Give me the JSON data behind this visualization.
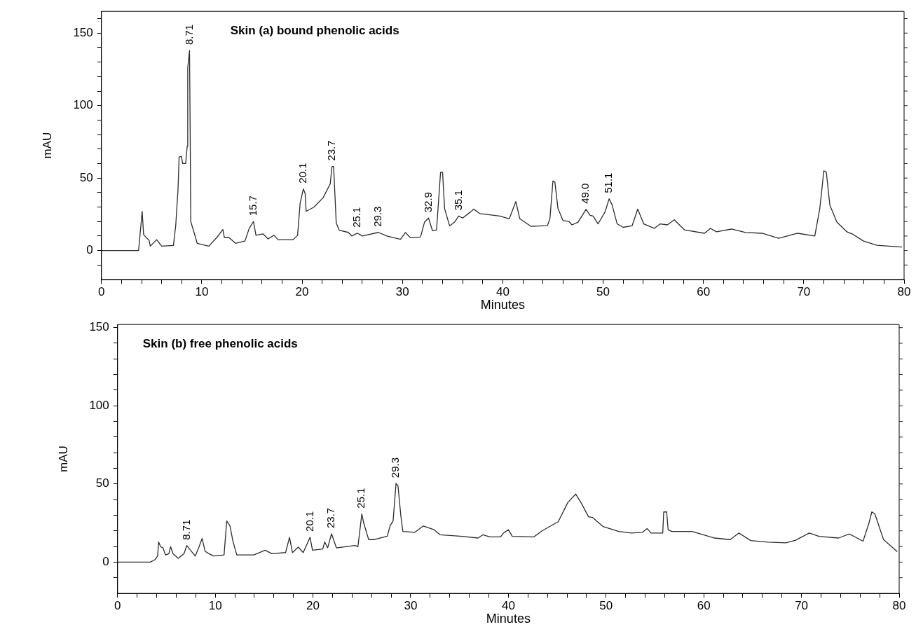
{
  "chart_data": [
    {
      "type": "line",
      "title": "Skin (a) bound phenolic acids",
      "xlabel": "Minutes",
      "ylabel": "mAU",
      "grid": false,
      "legend": false,
      "marker": "none",
      "line_style": "solid",
      "xlim": [
        0,
        80
      ],
      "ylim": [
        -20,
        165
      ],
      "xticks": [
        0,
        {
          "value": 2,
          "label": null
        },
        {
          "value": 4,
          "label": null
        },
        {
          "value": 6,
          "label": null
        },
        {
          "value": 8,
          "label": null
        },
        10,
        {
          "value": 12,
          "label": null
        },
        {
          "value": 14,
          "label": null
        },
        {
          "value": 16,
          "label": null
        },
        {
          "value": 18,
          "label": null
        },
        20,
        {
          "value": 22,
          "label": null
        },
        {
          "value": 24,
          "label": null
        },
        {
          "value": 26,
          "label": null
        },
        {
          "value": 28,
          "label": null
        },
        30,
        {
          "value": 32,
          "label": null
        },
        {
          "value": 34,
          "label": null
        },
        {
          "value": 36,
          "label": null
        },
        {
          "value": 38,
          "label": null
        },
        40,
        {
          "value": 42,
          "label": null
        },
        {
          "value": 44,
          "label": null
        },
        {
          "value": 46,
          "label": null
        },
        {
          "value": 48,
          "label": null
        },
        50,
        {
          "value": 52,
          "label": null
        },
        {
          "value": 54,
          "label": null
        },
        {
          "value": 56,
          "label": null
        },
        {
          "value": 58,
          "label": null
        },
        60,
        {
          "value": 62,
          "label": null
        },
        {
          "value": 64,
          "label": null
        },
        {
          "value": 66,
          "label": null
        },
        {
          "value": 68,
          "label": null
        },
        70,
        {
          "value": 72,
          "label": null
        },
        {
          "value": 74,
          "label": null
        },
        {
          "value": 76,
          "label": null
        },
        {
          "value": 78,
          "label": null
        },
        80
      ],
      "yticks": [
        {
          "value": -10,
          "label": null
        },
        0,
        {
          "value": 10,
          "label": null
        },
        {
          "value": 20,
          "label": null
        },
        {
          "value": 30,
          "label": null
        },
        {
          "value": 40,
          "label": null
        },
        50,
        {
          "value": 60,
          "label": null
        },
        {
          "value": 70,
          "label": null
        },
        {
          "value": 80,
          "label": null
        },
        {
          "value": 90,
          "label": null
        },
        100,
        {
          "value": 110,
          "label": null
        },
        {
          "value": 120,
          "label": null
        },
        {
          "value": 130,
          "label": null
        },
        {
          "value": 140,
          "label": null
        },
        150,
        {
          "value": 160,
          "label": null
        }
      ],
      "series": [
        {
          "color": "#2b2b2b",
          "x": [
            0,
            3.7,
            4.06,
            4.2,
            4.75,
            4.87,
            5.5,
            6.0,
            7.17,
            7.4,
            7.63,
            7.74,
            7.97,
            8.09,
            8.39,
            8.55,
            8.6,
            8.78,
            8.85,
            8.9,
            9.25,
            9.54,
            10.7,
            11.5,
            12.1,
            12.25,
            12.7,
            13.36,
            14.3,
            14.74,
            15.15,
            15.4,
            16.1,
            16.6,
            17.2,
            17.6,
            19.1,
            19.55,
            19.8,
            20.12,
            20.3,
            20.4,
            21.2,
            22.1,
            22.8,
            22.98,
            23.14,
            23.4,
            23.7,
            24.6,
            24.96,
            25.5,
            26.0,
            27.6,
            28.45,
            29.8,
            30.3,
            30.8,
            31.8,
            32.2,
            32.6,
            33.0,
            33.4,
            33.8,
            34.0,
            34.2,
            34.7,
            35.2,
            35.6,
            36.0,
            36.8,
            37.1,
            37.7,
            39.7,
            40.65,
            41.3,
            41.7,
            42.8,
            44.45,
            44.7,
            45.0,
            45.2,
            45.5,
            46.0,
            46.6,
            46.9,
            47.5,
            48.3,
            48.7,
            49.0,
            49.5,
            50.2,
            50.6,
            50.9,
            51.4,
            52.0,
            52.9,
            53.45,
            54.05,
            55.1,
            55.7,
            56.4,
            57.1,
            58.1,
            60.1,
            60.7,
            61.3,
            62.8,
            64.2,
            65.85,
            67.5,
            69.4,
            71.1,
            71.6,
            72.0,
            72.25,
            72.6,
            73.3,
            74.3,
            74.9,
            75.96,
            77.3,
            79.8
          ],
          "values": [
            0,
            0,
            27,
            11,
            7,
            3,
            7.5,
            3,
            3.5,
            17,
            42,
            64.5,
            65,
            60,
            60,
            72,
            126,
            138,
            74,
            20,
            12,
            5,
            3,
            9,
            14.5,
            9,
            9,
            5,
            6.5,
            15.5,
            20,
            10.5,
            11.5,
            8,
            10.5,
            7.5,
            7.5,
            10.5,
            32.5,
            42.5,
            39.5,
            27,
            30,
            36.5,
            46,
            58,
            58,
            19,
            14,
            12.5,
            10,
            12,
            10,
            12.5,
            10,
            7.7,
            12.4,
            8.8,
            9.3,
            19.6,
            22.4,
            13.6,
            14.3,
            54,
            54,
            29,
            17,
            19.6,
            23.8,
            22.4,
            26.7,
            28.6,
            25.5,
            23.8,
            21.9,
            33.8,
            21.9,
            16.7,
            17.2,
            21.9,
            48,
            47,
            29,
            20.7,
            20,
            17.7,
            19.6,
            28.4,
            24.3,
            23.8,
            18.4,
            26.7,
            35.7,
            31.4,
            18.4,
            16,
            17.2,
            28.6,
            18.4,
            15.3,
            18.4,
            17.7,
            21.2,
            14.3,
            11.9,
            15.3,
            12.9,
            14.8,
            12.4,
            11.9,
            8.4,
            11.9,
            10,
            29,
            55,
            54,
            31.4,
            19.6,
            12.9,
            11.2,
            6.5,
            3.6,
            2.4
          ]
        }
      ],
      "annotations": [
        {
          "text": "8.71",
          "x": 8.78,
          "y": 138
        },
        {
          "text": "15.7",
          "x": 15.15,
          "y": 20
        },
        {
          "text": "20.1",
          "x": 20.12,
          "y": 42.5
        },
        {
          "text": "23.7",
          "x": 22.98,
          "y": 58
        },
        {
          "text": "25.1",
          "x": 25.5,
          "y": 12
        },
        {
          "text": "29.3",
          "x": 27.6,
          "y": 12.5
        },
        {
          "text": "32.9",
          "x": 32.6,
          "y": 22.4
        },
        {
          "text": "35.1",
          "x": 35.6,
          "y": 23.8
        },
        {
          "text": "49.0",
          "x": 48.3,
          "y": 28.4
        },
        {
          "text": "51.1",
          "x": 50.6,
          "y": 35.7
        }
      ]
    },
    {
      "type": "line",
      "title": "Skin (b) free phenolic acids",
      "xlabel": "Minutes",
      "ylabel": "mAU",
      "grid": false,
      "legend": false,
      "marker": "none",
      "line_style": "solid",
      "xlim": [
        0,
        80
      ],
      "ylim": [
        -20,
        152
      ],
      "xticks": [
        0,
        {
          "value": 2,
          "label": null
        },
        {
          "value": 4,
          "label": null
        },
        {
          "value": 6,
          "label": null
        },
        {
          "value": 8,
          "label": null
        },
        10,
        {
          "value": 12,
          "label": null
        },
        {
          "value": 14,
          "label": null
        },
        {
          "value": 16,
          "label": null
        },
        {
          "value": 18,
          "label": null
        },
        20,
        {
          "value": 22,
          "label": null
        },
        {
          "value": 24,
          "label": null
        },
        {
          "value": 26,
          "label": null
        },
        {
          "value": 28,
          "label": null
        },
        30,
        {
          "value": 32,
          "label": null
        },
        {
          "value": 34,
          "label": null
        },
        {
          "value": 36,
          "label": null
        },
        {
          "value": 38,
          "label": null
        },
        40,
        {
          "value": 42,
          "label": null
        },
        {
          "value": 44,
          "label": null
        },
        {
          "value": 46,
          "label": null
        },
        {
          "value": 48,
          "label": null
        },
        50,
        {
          "value": 52,
          "label": null
        },
        {
          "value": 54,
          "label": null
        },
        {
          "value": 56,
          "label": null
        },
        {
          "value": 58,
          "label": null
        },
        60,
        {
          "value": 62,
          "label": null
        },
        {
          "value": 64,
          "label": null
        },
        {
          "value": 66,
          "label": null
        },
        {
          "value": 68,
          "label": null
        },
        70,
        {
          "value": 72,
          "label": null
        },
        {
          "value": 74,
          "label": null
        },
        {
          "value": 76,
          "label": null
        },
        {
          "value": 78,
          "label": null
        },
        80
      ],
      "yticks": [
        {
          "value": -10,
          "label": null
        },
        0,
        {
          "value": 10,
          "label": null
        },
        {
          "value": 20,
          "label": null
        },
        {
          "value": 30,
          "label": null
        },
        {
          "value": 40,
          "label": null
        },
        50,
        {
          "value": 60,
          "label": null
        },
        {
          "value": 70,
          "label": null
        },
        {
          "value": 80,
          "label": null
        },
        {
          "value": 90,
          "label": null
        },
        100,
        {
          "value": 110,
          "label": null
        },
        {
          "value": 120,
          "label": null
        },
        {
          "value": 130,
          "label": null
        },
        {
          "value": 140,
          "label": null
        },
        150
      ],
      "series": [
        {
          "color": "#2b2b2b",
          "x": [
            0,
            3.36,
            3.83,
            4.1,
            4.2,
            4.4,
            4.65,
            4.9,
            5.25,
            5.43,
            5.67,
            6.2,
            6.8,
            7.08,
            7.36,
            7.95,
            8.3,
            8.65,
            8.96,
            9.36,
            9.83,
            10.9,
            11.17,
            11.5,
            11.8,
            12.2,
            13.95,
            15.1,
            15.8,
            17.2,
            17.6,
            17.9,
            18.5,
            19.0,
            19.7,
            19.95,
            21.0,
            21.2,
            21.5,
            21.9,
            22.4,
            24.3,
            24.6,
            25.0,
            25.2,
            25.7,
            26.3,
            27.6,
            27.9,
            28.2,
            28.5,
            28.7,
            29.0,
            29.2,
            30.4,
            31.3,
            32.4,
            33.0,
            35.3,
            36.9,
            37.4,
            38.1,
            39.2,
            39.5,
            40.0,
            40.4,
            42.6,
            43.5,
            45.1,
            46.1,
            46.9,
            47.5,
            48.2,
            48.6,
            49.7,
            51.3,
            52.6,
            53.7,
            54.2,
            54.6,
            55.8,
            55.9,
            56.2,
            56.35,
            56.7,
            58.8,
            61.1,
            62.7,
            63.6,
            64.8,
            66.6,
            68.4,
            69.4,
            70.8,
            71.8,
            73.8,
            74.9,
            76.3,
            76.9,
            77.2,
            77.5,
            78.4,
            79.8
          ],
          "values": [
            0,
            0,
            1.6,
            3.9,
            12.9,
            9.9,
            9.1,
            4.6,
            5.4,
            9.9,
            5.4,
            2.4,
            5.4,
            10.6,
            8.4,
            3.9,
            9.1,
            15.1,
            6.9,
            5.4,
            3.9,
            4.6,
            26.3,
            23.3,
            13.6,
            4.6,
            4.6,
            7.6,
            5.4,
            6.1,
            15.9,
            6.1,
            9.6,
            6.1,
            15.9,
            7.6,
            8.4,
            12.9,
            9.1,
            18.1,
            9.1,
            10.6,
            9.9,
            30.8,
            24.8,
            14.4,
            14.4,
            16.6,
            23.3,
            26.3,
            50.3,
            48.8,
            29.3,
            19.6,
            19,
            23.1,
            20.7,
            17.5,
            16.5,
            15.4,
            17.5,
            16.1,
            16.1,
            18.6,
            20.7,
            16.5,
            16.1,
            20.2,
            25.8,
            38.3,
            43.5,
            37.3,
            29,
            28.6,
            22.7,
            19.6,
            18.6,
            19,
            21.5,
            18.6,
            18.6,
            32.1,
            32.1,
            20.7,
            19.6,
            19.6,
            15.4,
            14.4,
            18.6,
            13.8,
            12.8,
            12.3,
            14,
            18.6,
            16.5,
            15.4,
            18,
            13.4,
            24.8,
            32.1,
            31,
            14.4,
            6.7
          ]
        }
      ],
      "annotations": [
        {
          "text": "8.71",
          "x": 7.08,
          "y": 10.6
        },
        {
          "text": "20.1",
          "x": 19.7,
          "y": 15.9
        },
        {
          "text": "23.7",
          "x": 21.9,
          "y": 18.1
        },
        {
          "text": "25.1",
          "x": 25.0,
          "y": 30.8
        },
        {
          "text": "29.3",
          "x": 28.5,
          "y": 50.3
        }
      ]
    }
  ]
}
